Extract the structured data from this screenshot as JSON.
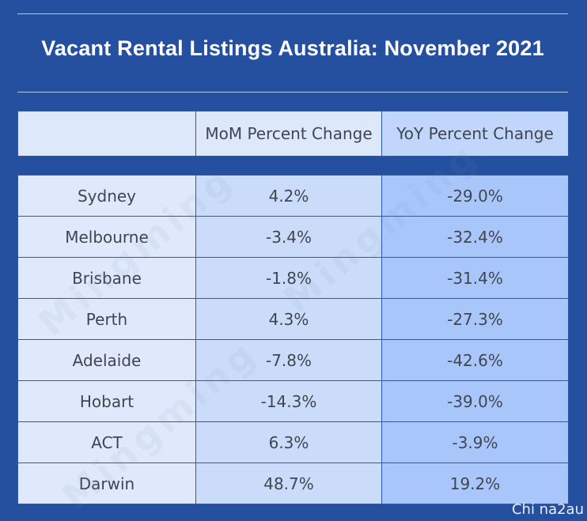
{
  "title": "Vacant Rental Listings Australia: November 2021",
  "columns": [
    "",
    "MoM Percent Change",
    "YoY Percent Change"
  ],
  "rows": [
    {
      "city": "Sydney",
      "mom": "4.2%",
      "yoy": "-29.0%"
    },
    {
      "city": "Melbourne",
      "mom": "-3.4%",
      "yoy": "-32.4%"
    },
    {
      "city": "Brisbane",
      "mom": "-1.8%",
      "yoy": "-31.4%"
    },
    {
      "city": "Perth",
      "mom": "4.3%",
      "yoy": "-27.3%"
    },
    {
      "city": "Adelaide",
      "mom": "-7.8%",
      "yoy": "-42.6%"
    },
    {
      "city": "Hobart",
      "mom": "-14.3%",
      "yoy": "-39.0%"
    },
    {
      "city": "ACT",
      "mom": "6.3%",
      "yoy": "-3.9%"
    },
    {
      "city": "Darwin",
      "mom": "48.7%",
      "yoy": "19.2%"
    }
  ],
  "watermark": "Mingming",
  "credit": "Chi na2au",
  "colors": {
    "background": "#2550a0",
    "city_cell": "#dfe9fb",
    "mom_cell": "#cbdcfa",
    "yoy_cell": "#a9c6fb"
  }
}
